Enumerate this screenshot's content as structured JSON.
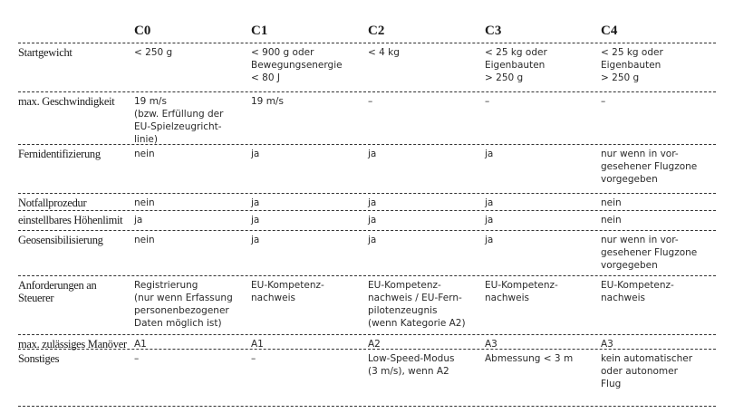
{
  "columns": [
    "C0",
    "C1",
    "C2",
    "C3",
    "C4"
  ],
  "rows": [
    {
      "label": "Startgewicht",
      "cells": [
        "< 250 g",
        "< 900 g oder\nBewegungsenergie\n< 80 J",
        "< 4 kg",
        "< 25 kg oder\nEigenbauten\n> 250 g",
        "< 25 kg oder\nEigenbauten\n> 250 g"
      ]
    },
    {
      "label": "max. Geschwindigkeit",
      "cells": [
        "19 m/s\n(bzw. Erfüllung der\nEU-Spielzeugricht-\nlinie)",
        "19 m/s",
        "–",
        "–",
        "–"
      ]
    },
    {
      "label": "Fernidentifizierung",
      "cells": [
        "nein",
        "ja",
        "ja",
        "ja",
        "nur wenn in vor-\ngesehener Flugzone\nvorgegeben"
      ]
    },
    {
      "label": "Notfallprozedur",
      "cells": [
        "nein",
        "ja",
        "ja",
        "ja",
        "nein"
      ]
    },
    {
      "label": "einstellbares Höhenlimit",
      "cells": [
        "ja",
        "ja",
        "ja",
        "ja",
        "nein"
      ]
    },
    {
      "label": "Geosensibilisierung",
      "cells": [
        "nein",
        "ja",
        "ja",
        "ja",
        "nur wenn in vor-\ngesehener Flugzone\nvorgegeben"
      ]
    },
    {
      "label": "Anforderungen an\nSteuerer",
      "cells": [
        "Registrierung\n(nur wenn Erfassung\npersonenbezogener\nDaten möglich ist)",
        "EU-Kompetenz-\nnachweis",
        "EU-Kompetenz-\nnachweis / EU-Fern-\npilotenzeugnis\n(wenn Kategorie A2)",
        "EU-Kompetenz-\nnachweis",
        "EU-Kompetenz-\nnachweis"
      ]
    },
    {
      "label": "max. zulässiges Manöver",
      "cells": [
        "A1",
        "A1",
        "A2",
        "A3",
        "A3"
      ]
    },
    {
      "label": "Sonstiges",
      "cells": [
        "–",
        "–",
        "Low-Speed-Modus\n(3 m/s), wenn A2",
        "Abmessung < 3 m",
        "kein automatischer\noder autonomer\nFlug"
      ]
    }
  ]
}
